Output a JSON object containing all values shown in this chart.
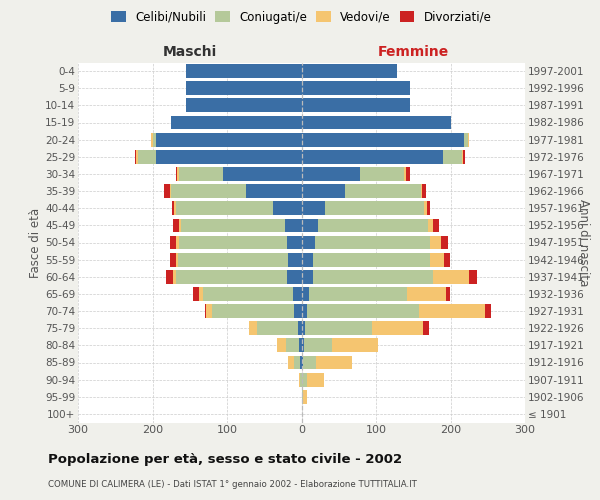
{
  "age_groups": [
    "100+",
    "95-99",
    "90-94",
    "85-89",
    "80-84",
    "75-79",
    "70-74",
    "65-69",
    "60-64",
    "55-59",
    "50-54",
    "45-49",
    "40-44",
    "35-39",
    "30-34",
    "25-29",
    "20-24",
    "15-19",
    "10-14",
    "5-9",
    "0-4"
  ],
  "birth_years": [
    "≤ 1901",
    "1902-1906",
    "1907-1911",
    "1912-1916",
    "1917-1921",
    "1922-1926",
    "1927-1931",
    "1932-1936",
    "1937-1941",
    "1942-1946",
    "1947-1951",
    "1952-1956",
    "1957-1961",
    "1962-1966",
    "1967-1971",
    "1972-1976",
    "1977-1981",
    "1982-1986",
    "1987-1991",
    "1992-1996",
    "1997-2001"
  ],
  "males": {
    "celibi": [
      0,
      0,
      0,
      2,
      3,
      5,
      10,
      12,
      20,
      18,
      20,
      22,
      38,
      75,
      105,
      195,
      195,
      175,
      155,
      155,
      155
    ],
    "coniugati": [
      0,
      0,
      2,
      8,
      18,
      55,
      110,
      120,
      148,
      148,
      145,
      140,
      130,
      100,
      60,
      25,
      5,
      0,
      0,
      0,
      0
    ],
    "vedovi": [
      0,
      0,
      2,
      8,
      12,
      10,
      8,
      5,
      4,
      3,
      3,
      3,
      3,
      2,
      2,
      2,
      2,
      0,
      0,
      0,
      0
    ],
    "divorziati": [
      0,
      0,
      0,
      0,
      0,
      0,
      2,
      8,
      10,
      8,
      8,
      7,
      3,
      8,
      2,
      2,
      0,
      0,
      0,
      0,
      0
    ]
  },
  "females": {
    "nubili": [
      0,
      0,
      0,
      2,
      3,
      5,
      8,
      10,
      15,
      15,
      18,
      22,
      32,
      58,
      78,
      190,
      218,
      200,
      145,
      145,
      128
    ],
    "coniugate": [
      0,
      2,
      8,
      18,
      38,
      90,
      150,
      132,
      162,
      158,
      155,
      148,
      132,
      102,
      60,
      25,
      5,
      0,
      0,
      0,
      0
    ],
    "vedove": [
      0,
      5,
      22,
      48,
      62,
      68,
      88,
      52,
      48,
      18,
      14,
      7,
      4,
      2,
      2,
      2,
      2,
      0,
      0,
      0,
      0
    ],
    "divorziate": [
      0,
      0,
      0,
      0,
      0,
      8,
      8,
      5,
      10,
      8,
      10,
      8,
      5,
      5,
      5,
      3,
      0,
      0,
      0,
      0,
      0
    ]
  },
  "colors": {
    "celibi": "#3a6ea5",
    "coniugati": "#b5c99a",
    "vedovi": "#f5c570",
    "divorziati": "#cc2222"
  },
  "title": "Popolazione per età, sesso e stato civile - 2002",
  "subtitle": "COMUNE DI CALIMERA (LE) - Dati ISTAT 1° gennaio 2002 - Elaborazione TUTTITALIA.IT",
  "xlabel_left": "Maschi",
  "xlabel_right": "Femmine",
  "ylabel_left": "Fasce di età",
  "ylabel_right": "Anni di nascita",
  "xlim": 300,
  "legend_labels": [
    "Celibi/Nubili",
    "Coniugati/e",
    "Vedovi/e",
    "Divorziati/e"
  ],
  "bg_color": "#f0f0eb",
  "plot_bg": "#ffffff"
}
